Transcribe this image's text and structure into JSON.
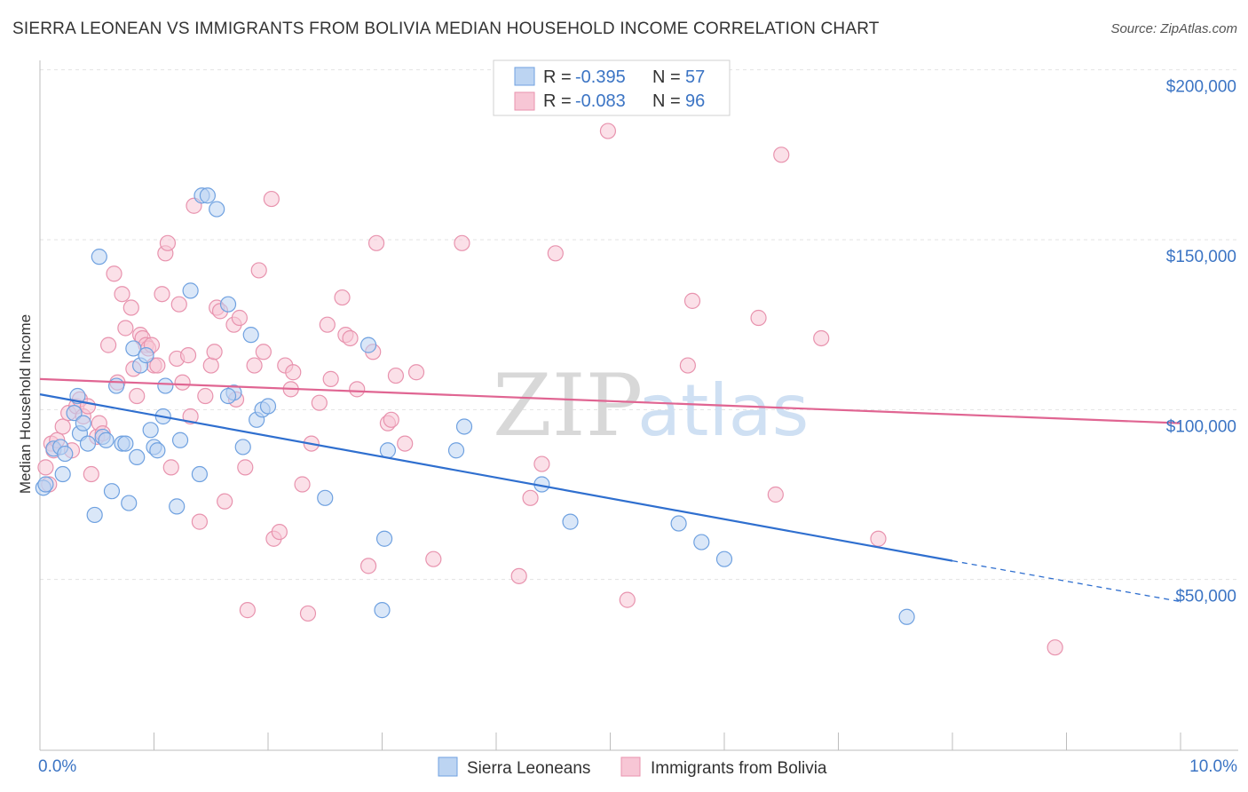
{
  "title": "SIERRA LEONEAN VS IMMIGRANTS FROM BOLIVIA MEDIAN HOUSEHOLD INCOME CORRELATION CHART",
  "source": "Source: ZipAtlas.com",
  "watermark": {
    "zip": "ZIP",
    "atlas": "atlas"
  },
  "chart_data": {
    "type": "scatter",
    "ylabel": "Median Household Income",
    "xlim": [
      0,
      10
    ],
    "ylim": [
      0,
      210000
    ],
    "x_tick_labels": [
      "0.0%",
      "10.0%"
    ],
    "y_ticks": [
      {
        "value": 50000,
        "label": "$50,000"
      },
      {
        "value": 100000,
        "label": "$100,000"
      },
      {
        "value": 150000,
        "label": "$150,000"
      },
      {
        "value": 200000,
        "label": "$200,000"
      }
    ],
    "legend": [
      {
        "r_label": "R =",
        "r": "-0.395",
        "n_label": "N =",
        "n": "57"
      },
      {
        "r_label": "R =",
        "r": "-0.083",
        "n_label": "N =",
        "n": "96"
      }
    ],
    "series": [
      {
        "name": "Sierra Leoneans",
        "color": "#6fa1e0",
        "fill": "#bcd4f2",
        "line_color": "#2f6fcf",
        "trend": {
          "x0": 0,
          "y0": 104500,
          "x1": 8.0,
          "y1": 55500,
          "dash_to_x": 10,
          "dash_to_y": 43500
        },
        "points": [
          [
            0.03,
            77000
          ],
          [
            0.05,
            78000
          ],
          [
            0.12,
            88500
          ],
          [
            0.18,
            89000
          ],
          [
            0.2,
            81000
          ],
          [
            0.22,
            87000
          ],
          [
            0.3,
            99000
          ],
          [
            0.35,
            93000
          ],
          [
            0.33,
            104000
          ],
          [
            0.38,
            96000
          ],
          [
            0.42,
            90000
          ],
          [
            0.48,
            69000
          ],
          [
            0.52,
            145000
          ],
          [
            0.55,
            92000
          ],
          [
            0.58,
            91000
          ],
          [
            0.63,
            76000
          ],
          [
            0.67,
            107000
          ],
          [
            0.72,
            90000
          ],
          [
            0.75,
            90000
          ],
          [
            0.78,
            72500
          ],
          [
            0.82,
            118000
          ],
          [
            0.85,
            86000
          ],
          [
            0.88,
            113000
          ],
          [
            0.93,
            116000
          ],
          [
            0.97,
            94000
          ],
          [
            1.0,
            89000
          ],
          [
            1.03,
            88000
          ],
          [
            1.08,
            98000
          ],
          [
            1.1,
            107000
          ],
          [
            1.2,
            71500
          ],
          [
            1.23,
            91000
          ],
          [
            1.32,
            135000
          ],
          [
            1.4,
            81000
          ],
          [
            1.42,
            163000
          ],
          [
            1.47,
            163000
          ],
          [
            1.55,
            159000
          ],
          [
            1.65,
            131000
          ],
          [
            1.7,
            105000
          ],
          [
            1.78,
            89000
          ],
          [
            1.85,
            122000
          ],
          [
            1.9,
            97000
          ],
          [
            1.95,
            100000
          ],
          [
            2.0,
            101000
          ],
          [
            2.5,
            74000
          ],
          [
            2.88,
            119000
          ],
          [
            3.0,
            41000
          ],
          [
            3.02,
            62000
          ],
          [
            3.05,
            88000
          ],
          [
            3.65,
            88000
          ],
          [
            3.72,
            95000
          ],
          [
            4.4,
            78000
          ],
          [
            4.65,
            67000
          ],
          [
            5.6,
            66500
          ],
          [
            5.8,
            61000
          ],
          [
            6.0,
            56000
          ],
          [
            7.6,
            39000
          ],
          [
            1.65,
            104000
          ]
        ]
      },
      {
        "name": "Immigrants from Bolivia",
        "color": "#e893ae",
        "fill": "#f7c6d5",
        "line_color": "#e06592",
        "trend": {
          "x0": 0,
          "y0": 109000,
          "x1": 10,
          "y1": 96000
        },
        "points": [
          [
            0.05,
            83000
          ],
          [
            0.08,
            78000
          ],
          [
            0.1,
            90000
          ],
          [
            0.12,
            88000
          ],
          [
            0.15,
            91000
          ],
          [
            0.2,
            95000
          ],
          [
            0.25,
            99000
          ],
          [
            0.28,
            88000
          ],
          [
            0.32,
            101000
          ],
          [
            0.35,
            103000
          ],
          [
            0.38,
            98000
          ],
          [
            0.42,
            101000
          ],
          [
            0.45,
            81000
          ],
          [
            0.5,
            92000
          ],
          [
            0.52,
            96000
          ],
          [
            0.55,
            93000
          ],
          [
            0.6,
            119000
          ],
          [
            0.65,
            140000
          ],
          [
            0.68,
            108000
          ],
          [
            0.72,
            134000
          ],
          [
            0.75,
            124000
          ],
          [
            0.8,
            130000
          ],
          [
            0.82,
            112000
          ],
          [
            0.85,
            104000
          ],
          [
            0.88,
            122000
          ],
          [
            0.9,
            121000
          ],
          [
            0.93,
            119000
          ],
          [
            0.95,
            118000
          ],
          [
            0.98,
            119000
          ],
          [
            1.0,
            113000
          ],
          [
            1.03,
            113000
          ],
          [
            1.07,
            134000
          ],
          [
            1.1,
            146000
          ],
          [
            1.12,
            149000
          ],
          [
            1.15,
            83000
          ],
          [
            1.2,
            115000
          ],
          [
            1.22,
            131000
          ],
          [
            1.25,
            108000
          ],
          [
            1.3,
            116000
          ],
          [
            1.32,
            98000
          ],
          [
            1.35,
            160000
          ],
          [
            1.4,
            67000
          ],
          [
            1.45,
            104000
          ],
          [
            1.5,
            113000
          ],
          [
            1.53,
            117000
          ],
          [
            1.55,
            130000
          ],
          [
            1.58,
            129000
          ],
          [
            1.62,
            73000
          ],
          [
            1.7,
            125000
          ],
          [
            1.72,
            103000
          ],
          [
            1.75,
            127000
          ],
          [
            1.8,
            83000
          ],
          [
            1.82,
            41000
          ],
          [
            1.88,
            113000
          ],
          [
            1.92,
            141000
          ],
          [
            1.96,
            117000
          ],
          [
            2.03,
            162000
          ],
          [
            2.05,
            62000
          ],
          [
            2.1,
            64000
          ],
          [
            2.15,
            113000
          ],
          [
            2.2,
            106000
          ],
          [
            2.22,
            111000
          ],
          [
            2.3,
            78000
          ],
          [
            2.35,
            40000
          ],
          [
            2.38,
            90000
          ],
          [
            2.45,
            102000
          ],
          [
            2.52,
            125000
          ],
          [
            2.55,
            109000
          ],
          [
            2.65,
            133000
          ],
          [
            2.68,
            122000
          ],
          [
            2.72,
            121000
          ],
          [
            2.78,
            106000
          ],
          [
            2.88,
            54000
          ],
          [
            2.92,
            117000
          ],
          [
            2.95,
            149000
          ],
          [
            3.05,
            96000
          ],
          [
            3.08,
            97000
          ],
          [
            3.12,
            110000
          ],
          [
            3.2,
            90000
          ],
          [
            3.3,
            111000
          ],
          [
            3.45,
            56000
          ],
          [
            3.7,
            149000
          ],
          [
            4.2,
            51000
          ],
          [
            4.3,
            74000
          ],
          [
            4.4,
            84000
          ],
          [
            4.52,
            146000
          ],
          [
            4.98,
            182000
          ],
          [
            5.15,
            44000
          ],
          [
            5.68,
            113000
          ],
          [
            5.72,
            132000
          ],
          [
            6.3,
            127000
          ],
          [
            6.45,
            75000
          ],
          [
            6.5,
            175000
          ],
          [
            6.85,
            121000
          ],
          [
            7.35,
            62000
          ],
          [
            8.9,
            30000
          ]
        ]
      }
    ]
  }
}
